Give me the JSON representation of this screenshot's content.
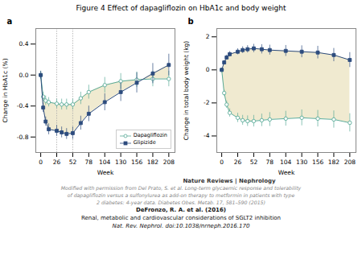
{
  "title": "Figure 4 Effect of dapagliflozin on HbA1c and body weight",
  "annotations": [
    "Nature Reviews | Nephrology",
    "Modified with permission from Del Prato, S. et al. Long-term glycaemic response and tolerability",
    "of dapagliflozin versus a sulfonylurea as add-on therapy to metformin in patients with type",
    "2 diabetes: 4-year data. Diabetes Obes. Metab. 17, 581–590 (2015)",
    "DeFronzo, R. A. et al. (2016)",
    "Renal, metabolic and cardiovascular considerations of SGLT2 inhibition",
    "Nat. Rev. Nephrol. doi:10.1038/nrneph.2016.170"
  ],
  "chart_data": [
    {
      "type": "line",
      "annotations": [
        "a"
      ],
      "x": [
        0,
        4,
        8,
        13,
        26,
        34,
        42,
        52,
        65,
        78,
        104,
        130,
        156,
        182,
        208
      ],
      "xlabel": "Week",
      "ylabel": "Change in HbA1c (%)",
      "xlim": [
        -8,
        218
      ],
      "xticks": [
        0,
        26,
        52,
        78,
        104,
        130,
        156,
        182,
        208
      ],
      "ylim": [
        -1.0,
        0.6
      ],
      "yticks": [
        -0.8,
        -0.4,
        {
          "value": 0,
          "label": "0.0"
        },
        0.4
      ],
      "vlines": [
        26,
        52
      ],
      "grid": false,
      "legend": "lower right",
      "series": [
        {
          "name": "Dapagliflozin",
          "color": "#5aab98",
          "marker": "circle",
          "line_style": "solid",
          "values": [
            0.0,
            -0.28,
            -0.33,
            -0.35,
            -0.37,
            -0.38,
            -0.38,
            -0.38,
            -0.3,
            -0.22,
            -0.13,
            -0.08,
            -0.06,
            -0.05,
            -0.05
          ],
          "errors": [
            0.05,
            0.06,
            0.06,
            0.06,
            0.06,
            0.07,
            0.07,
            0.07,
            0.08,
            0.09,
            0.1,
            0.1,
            0.1,
            0.1,
            0.1
          ]
        },
        {
          "name": "Glipizide",
          "color": "#2d4c7e",
          "marker": "square",
          "line_style": "solid",
          "values": [
            0.0,
            -0.42,
            -0.6,
            -0.7,
            -0.72,
            -0.74,
            -0.76,
            -0.75,
            -0.62,
            -0.5,
            -0.35,
            -0.22,
            -0.1,
            0.02,
            0.13
          ],
          "errors": [
            0.05,
            0.06,
            0.06,
            0.07,
            0.07,
            0.07,
            0.07,
            0.08,
            0.09,
            0.1,
            0.11,
            0.12,
            0.13,
            0.13,
            0.14
          ]
        }
      ]
    },
    {
      "type": "line",
      "annotations": [
        "b"
      ],
      "x": [
        0,
        4,
        8,
        13,
        26,
        34,
        42,
        52,
        65,
        78,
        104,
        130,
        156,
        182,
        208
      ],
      "xlabel": "Week",
      "ylabel": "Change in total body weight (kg)",
      "xlim": [
        -8,
        218
      ],
      "xticks": [
        0,
        26,
        52,
        78,
        104,
        130,
        156,
        182,
        208
      ],
      "ylim": [
        -5.0,
        2.5
      ],
      "yticks": [
        -4,
        -2,
        0,
        2
      ],
      "grid": false,
      "legend": false,
      "series": [
        {
          "name": "Dapagliflozin",
          "color": "#5aab98",
          "marker": "circle",
          "line_style": "solid",
          "values": [
            0.0,
            -1.4,
            -2.1,
            -2.6,
            -2.9,
            -3.05,
            -3.1,
            -3.1,
            -3.05,
            -3.0,
            -2.95,
            -2.9,
            -2.95,
            -3.0,
            -3.2
          ],
          "errors": [
            0.1,
            0.18,
            0.22,
            0.25,
            0.28,
            0.3,
            0.32,
            0.35,
            0.38,
            0.42,
            0.45,
            0.48,
            0.5,
            0.52,
            0.55
          ]
        },
        {
          "name": "Glipizide",
          "color": "#2d4c7e",
          "marker": "square",
          "line_style": "solid",
          "values": [
            0.0,
            0.45,
            0.75,
            0.95,
            1.1,
            1.2,
            1.25,
            1.3,
            1.25,
            1.2,
            1.15,
            1.1,
            1.05,
            0.9,
            0.6
          ],
          "errors": [
            0.1,
            0.12,
            0.15,
            0.16,
            0.18,
            0.2,
            0.22,
            0.25,
            0.28,
            0.3,
            0.33,
            0.36,
            0.38,
            0.4,
            0.45
          ]
        }
      ]
    }
  ]
}
